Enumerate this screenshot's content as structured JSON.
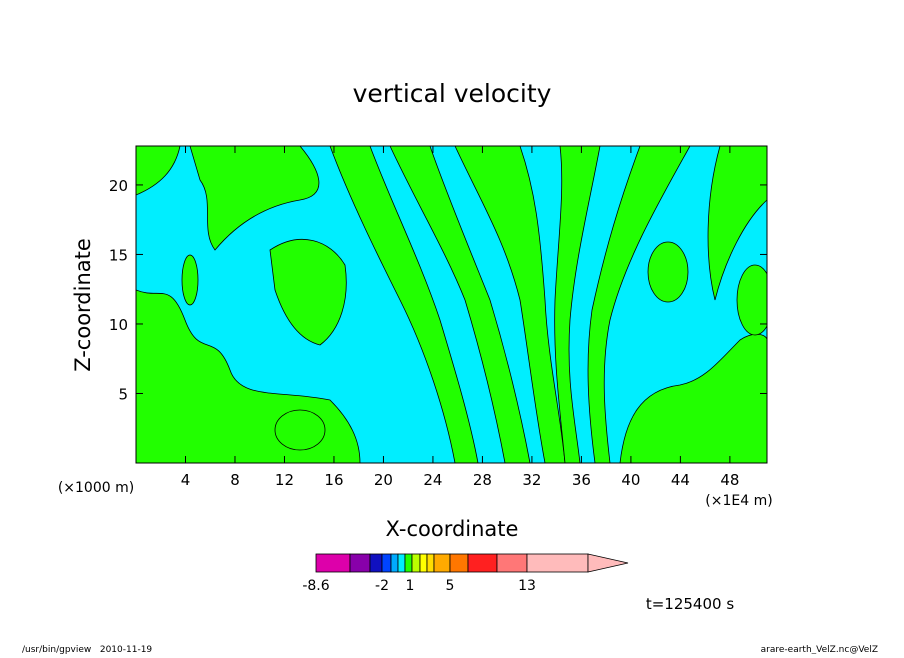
{
  "chart_data": {
    "type": "contour",
    "title": "vertical velocity",
    "xlabel": "X-coordinate",
    "ylabel": "Z-coordinate",
    "x_unit": "(×1000 m)",
    "x_scale_note": "(×1E4 m)",
    "xlim": [
      0,
      51
    ],
    "xticks": [
      4,
      8,
      12,
      16,
      20,
      24,
      28,
      32,
      36,
      40,
      44,
      48
    ],
    "ylim": [
      0,
      22.8
    ],
    "yticks": [
      5,
      10,
      15,
      20
    ],
    "colorbar_ticks": [
      -8.6,
      -2,
      1,
      5,
      13
    ],
    "time_label": "t=125400 s",
    "footer_left": "/usr/bin/gpview   2010-11-19",
    "footer_right": "arare-earth_VelZ.nc@VelZ"
  }
}
